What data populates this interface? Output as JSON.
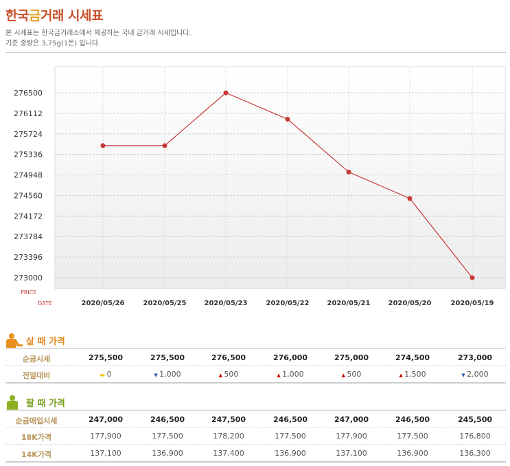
{
  "header": {
    "title_a": "한국",
    "title_b": "금",
    "title_c": "거래 시세표",
    "desc1": "본 시세표는 한국금거래소에서 제공하는 국내 금거래 시세입니다.",
    "desc2": "기준 중량은 3,75g(1돈) 입니다."
  },
  "chart_data": {
    "type": "line",
    "x": [
      "2020/05/26",
      "2020/05/25",
      "2020/05/23",
      "2020/05/22",
      "2020/05/21",
      "2020/05/20",
      "2020/05/19"
    ],
    "values": [
      275500,
      275500,
      276500,
      276000,
      275000,
      274500,
      273000
    ],
    "yticks": [
      276500,
      276112,
      275724,
      275336,
      274948,
      274560,
      274172,
      273784,
      273396,
      273000
    ],
    "ylim": [
      273000,
      276500
    ],
    "ylabel": "PRICE",
    "xlabel": "DATE",
    "color": "#c83a3a"
  },
  "buy": {
    "title": "살 때 가격",
    "rows": [
      {
        "label": "순금시세",
        "values": [
          "275,500",
          "275,500",
          "276,500",
          "276,000",
          "275,000",
          "274,500",
          "273,000"
        ]
      },
      {
        "label": "전일대비",
        "values": [
          "0",
          "1,000",
          "500",
          "1,000",
          "500",
          "1,500",
          "2,000"
        ],
        "dirs": [
          "same",
          "down",
          "up",
          "up",
          "up",
          "up",
          "down"
        ]
      }
    ]
  },
  "sell": {
    "title": "팔 때 가격",
    "rows": [
      {
        "label": "순금매입시세",
        "values": [
          "247,000",
          "246,500",
          "247,500",
          "246,500",
          "247,000",
          "246,500",
          "245,500"
        ]
      },
      {
        "label": "18K가격",
        "values": [
          "177,900",
          "177,500",
          "178,200",
          "177,500",
          "177,900",
          "177,500",
          "176,800"
        ]
      },
      {
        "label": "14K가격",
        "values": [
          "137,100",
          "136,900",
          "137,400",
          "136,900",
          "137,100",
          "136,900",
          "136,300"
        ]
      }
    ]
  }
}
